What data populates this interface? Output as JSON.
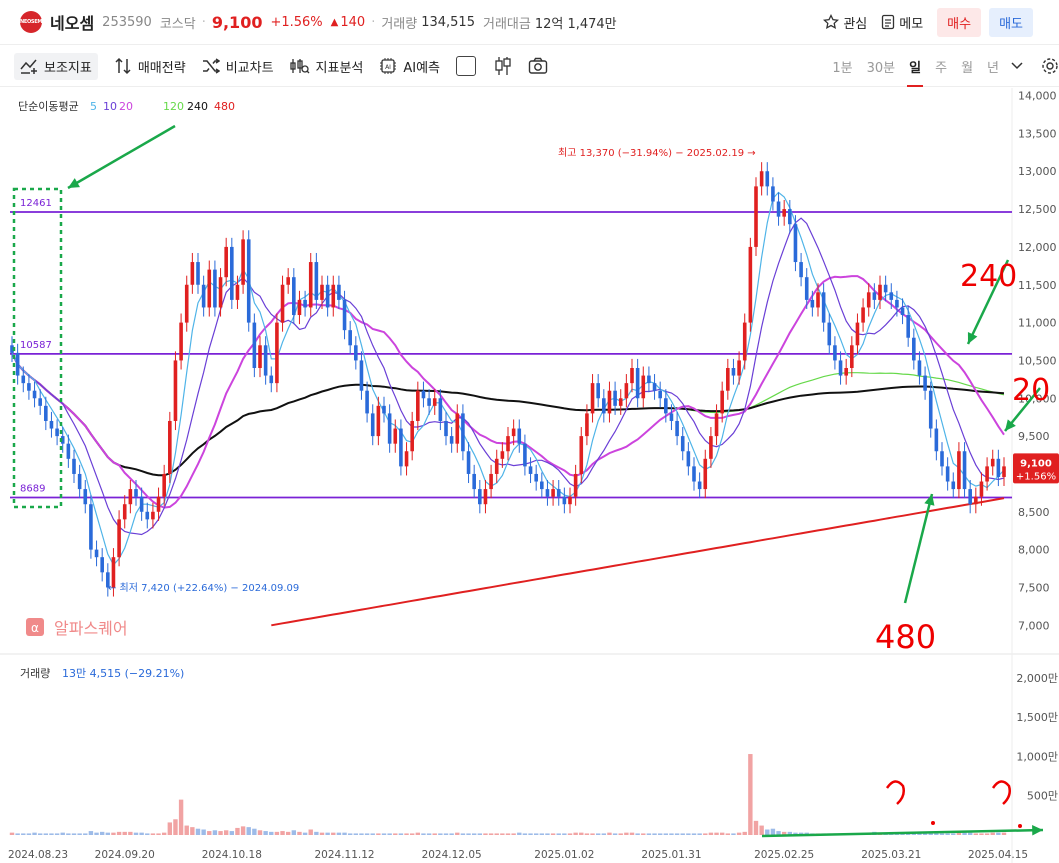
{
  "header": {
    "logo_text": "NEOSEM",
    "name": "네오셈",
    "code": "253590",
    "market": "코스닥",
    "price": "9,100",
    "rate": "+1.56%",
    "change": "140",
    "volume_label": "거래량",
    "volume_value": "134,515",
    "amount_label": "거래대금",
    "amount_value": "12억 1,474만",
    "watch_label": "관심",
    "memo_label": "메모",
    "buy_label": "매수",
    "sell_label": "매도"
  },
  "toolbar": {
    "items": [
      "보조지표",
      "매매전략",
      "비교차트",
      "지표분석",
      "AI예측"
    ],
    "periods": [
      "1분",
      "30분",
      "일",
      "주",
      "월",
      "년"
    ],
    "active_period": "일"
  },
  "colors": {
    "up": "#e02020",
    "down": "#2a6ad9",
    "ma5": "#4fb4e8",
    "ma10": "#6a3fd6",
    "ma20": "#cc44dd",
    "ma120": "#66d94a",
    "ma240": "#111111",
    "ma480": "#e02020",
    "level": "#7a22d6"
  },
  "chart_data": {
    "type": "candlestick",
    "ma_legend": {
      "title": "단순이동평균",
      "periods": [
        "5",
        "10",
        "20",
        "120",
        "240",
        "480"
      ]
    },
    "y_ticks": [
      "14,000",
      "13,500",
      "13,000",
      "12,500",
      "12,000",
      "11,500",
      "11,000",
      "10,500",
      "10,000",
      "9,500",
      "9,000",
      "8,500",
      "8,000",
      "7,500",
      "7,000"
    ],
    "ylim": [
      6700,
      14100
    ],
    "x_ticks": [
      "2024.08.23",
      "2024.09.20",
      "2024.10.18",
      "2024.11.12",
      "2024.12.05",
      "2025.01.02",
      "2025.01.31",
      "2025.02.25",
      "2025.03.21",
      "2025.04.15"
    ],
    "closes": [
      10600,
      10300,
      10200,
      10100,
      10000,
      9900,
      9700,
      9600,
      9500,
      9400,
      9200,
      9000,
      8800,
      8600,
      8000,
      7900,
      7700,
      7500,
      7900,
      8400,
      8600,
      8800,
      8700,
      8500,
      8400,
      8500,
      8700,
      9000,
      9700,
      10500,
      11000,
      11500,
      11800,
      11500,
      11200,
      11700,
      11200,
      11600,
      12000,
      11300,
      11500,
      12100,
      11000,
      10400,
      10700,
      10300,
      10200,
      11000,
      11500,
      11600,
      11100,
      11300,
      11200,
      11800,
      11300,
      11500,
      11200,
      11500,
      11300,
      10900,
      10700,
      10500,
      10100,
      9800,
      9500,
      9900,
      9800,
      9400,
      9600,
      9100,
      9300,
      9700,
      10100,
      10000,
      9900,
      10000,
      9700,
      9500,
      9400,
      9800,
      9300,
      9000,
      8800,
      8600,
      8800,
      9000,
      9200,
      9300,
      9500,
      9600,
      9400,
      9100,
      9000,
      8900,
      8800,
      8700,
      8800,
      8700,
      8600,
      8700,
      9000,
      9500,
      9800,
      10200,
      10000,
      9800,
      10100,
      9900,
      10000,
      10200,
      10400,
      10000,
      10300,
      10200,
      10100,
      10000,
      9800,
      9700,
      9500,
      9300,
      9100,
      8900,
      8800,
      9200,
      9500,
      9800,
      10100,
      10400,
      10300,
      10500,
      11000,
      12000,
      12800,
      13000,
      12800,
      12600,
      12400,
      12500,
      12300,
      11800,
      11600,
      11300,
      11200,
      11400,
      11000,
      10700,
      10500,
      10300,
      10400,
      10700,
      11000,
      11200,
      11400,
      11300,
      11500,
      11400,
      11300,
      11200,
      11100,
      10800,
      10500,
      10300,
      10100,
      9600,
      9300,
      9100,
      8900,
      8800,
      9300,
      8800,
      8600,
      8700,
      8900,
      9100,
      9200,
      8960,
      9100
    ],
    "volumes": [
      3,
      2,
      2,
      2,
      3,
      2,
      2,
      2,
      2,
      3,
      2,
      2,
      2,
      2,
      5,
      3,
      4,
      3,
      3,
      4,
      4,
      4,
      3,
      3,
      2,
      2,
      2,
      3,
      16,
      20,
      45,
      12,
      10,
      8,
      7,
      5,
      6,
      5,
      6,
      5,
      9,
      11,
      10,
      8,
      6,
      5,
      4,
      4,
      5,
      4,
      6,
      4,
      3,
      7,
      4,
      3,
      3,
      3,
      3,
      3,
      2,
      2,
      2,
      2,
      2,
      2,
      2,
      2,
      2,
      2,
      2,
      2,
      3,
      2,
      2,
      2,
      2,
      2,
      2,
      3,
      2,
      2,
      2,
      2,
      2,
      2,
      2,
      2,
      2,
      2,
      3,
      2,
      2,
      2,
      2,
      2,
      2,
      2,
      2,
      2,
      3,
      3,
      2,
      2,
      2,
      2,
      3,
      2,
      2,
      3,
      3,
      2,
      2,
      2,
      2,
      2,
      2,
      2,
      2,
      2,
      2,
      2,
      2,
      2,
      3,
      3,
      3,
      2,
      2,
      3,
      4,
      103,
      18,
      12,
      7,
      8,
      5,
      4,
      4,
      3,
      3,
      3,
      2,
      2,
      2,
      2,
      2,
      2,
      2,
      2,
      2,
      2,
      3,
      4,
      3,
      3,
      2,
      2,
      2,
      2,
      2,
      2,
      2,
      3,
      3,
      2,
      2,
      2,
      4,
      3,
      3,
      2,
      2,
      2,
      3,
      3,
      3,
      2,
      2,
      2,
      2
    ],
    "high_annotation": "최고 13,370 (−31.94%) − 2025.02.19 →",
    "low_annotation": "← 최저 7,420 (+22.64%) − 2024.09.09",
    "level_lines": [
      {
        "label": "12461",
        "value": 12461
      },
      {
        "label": "10587",
        "value": 10587
      },
      {
        "label": "8689",
        "value": 8689
      }
    ],
    "price_tag": {
      "price": "9,100",
      "rate": "+1.56%"
    },
    "watermark": "알파스퀘어",
    "volume_panel": {
      "title": "거래량",
      "value": "13만 4,515 (−29.21%)",
      "y_ticks": [
        "2,000만",
        "1,500만",
        "1,000만",
        "500만"
      ]
    },
    "handwritten": [
      "240",
      "20",
      "480"
    ]
  }
}
